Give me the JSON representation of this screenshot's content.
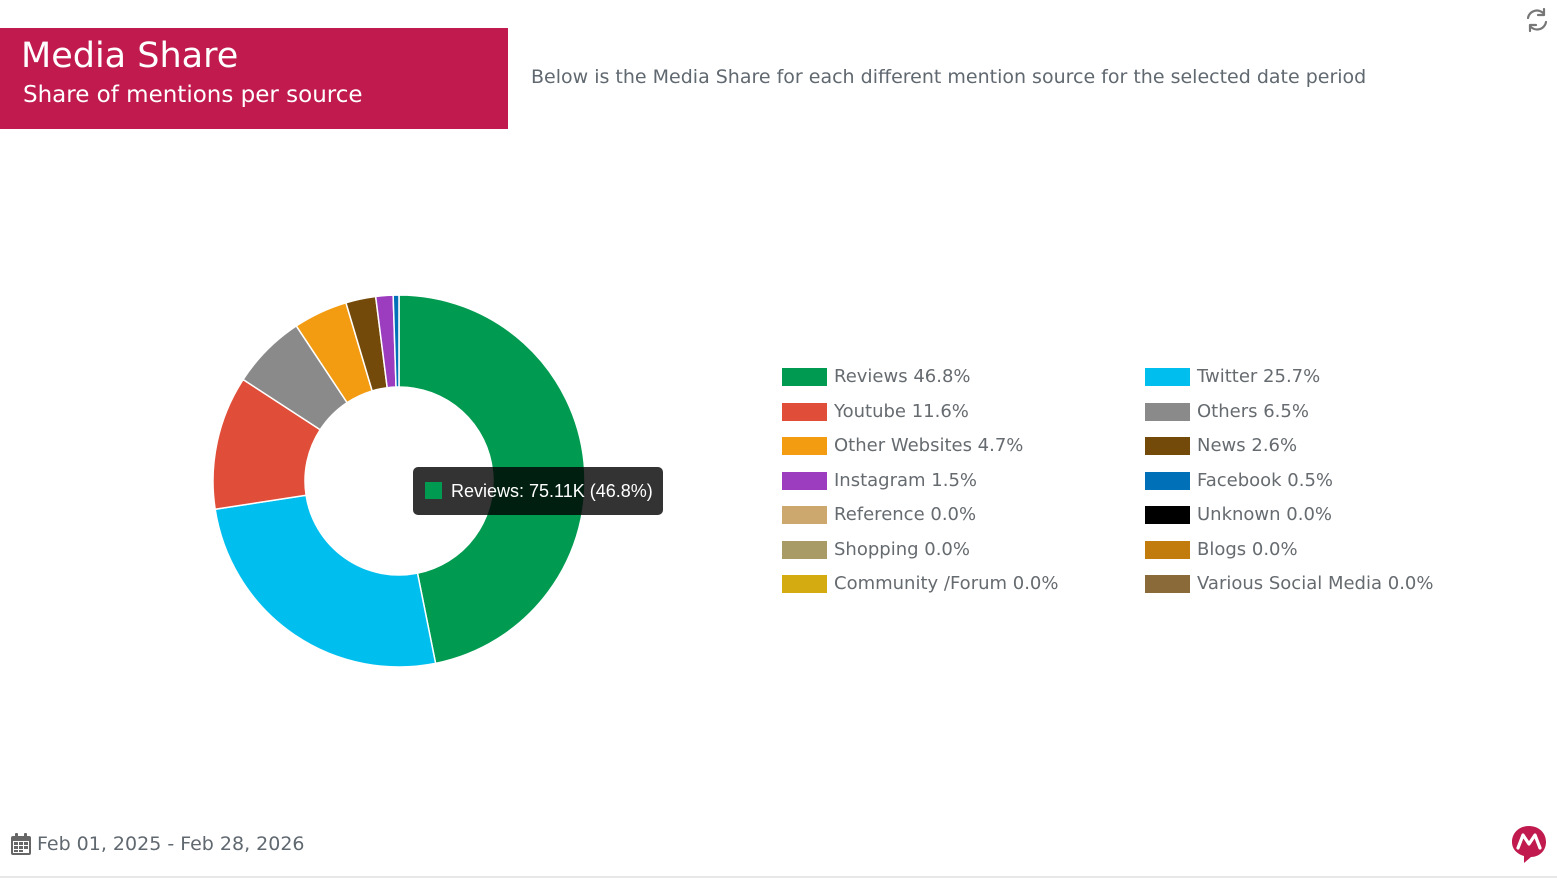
{
  "header": {
    "title": "Media Share",
    "subtitle": "Share of mentions per source",
    "accent_color": "#c01a4e"
  },
  "description": "Below is the Media Share for each different mention source for the selected date period",
  "toolbar": {
    "refresh_icon": "refresh-icon"
  },
  "tooltip": {
    "text": "Reviews: 75.11K (46.8%)",
    "color": "#009b50"
  },
  "footer": {
    "date_range": "Feb 01, 2025 - Feb 28, 2026",
    "calendar_icon": "calendar-icon",
    "logo_icon": "brand-logo-icon"
  },
  "chart_data": {
    "type": "pie",
    "donut": true,
    "legend_position": "right",
    "slices": [
      {
        "label": "Reviews",
        "value": 46.8,
        "legend": "Reviews 46.8%",
        "color": "#009b50"
      },
      {
        "label": "Twitter",
        "value": 25.7,
        "legend": "Twitter 25.7%",
        "color": "#00bfee"
      },
      {
        "label": "Youtube",
        "value": 11.6,
        "legend": "Youtube 11.6%",
        "color": "#e04e39"
      },
      {
        "label": "Others",
        "value": 6.5,
        "legend": "Others 6.5%",
        "color": "#8a8a8a"
      },
      {
        "label": "Other Websites",
        "value": 4.7,
        "legend": "Other Websites 4.7%",
        "color": "#f39c12"
      },
      {
        "label": "News",
        "value": 2.6,
        "legend": "News 2.6%",
        "color": "#744a0a"
      },
      {
        "label": "Instagram",
        "value": 1.5,
        "legend": "Instagram 1.5%",
        "color": "#9b3dbe"
      },
      {
        "label": "Facebook",
        "value": 0.5,
        "legend": "Facebook 0.5%",
        "color": "#0070b8"
      },
      {
        "label": "Reference",
        "value": 0.0,
        "legend": "Reference 0.0%",
        "color": "#cda86e"
      },
      {
        "label": "Unknown",
        "value": 0.0,
        "legend": "Unknown 0.0%",
        "color": "#000000"
      },
      {
        "label": "Shopping",
        "value": 0.0,
        "legend": "Shopping 0.0%",
        "color": "#a89b66"
      },
      {
        "label": "Blogs",
        "value": 0.0,
        "legend": "Blogs 0.0%",
        "color": "#c27c0e"
      },
      {
        "label": "Community /Forum",
        "value": 0.0,
        "legend": "Community /Forum 0.0%",
        "color": "#d4ac12"
      },
      {
        "label": "Various Social Media",
        "value": 0.0,
        "legend": "Various Social Media 0.0%",
        "color": "#8b6a3a"
      }
    ]
  }
}
